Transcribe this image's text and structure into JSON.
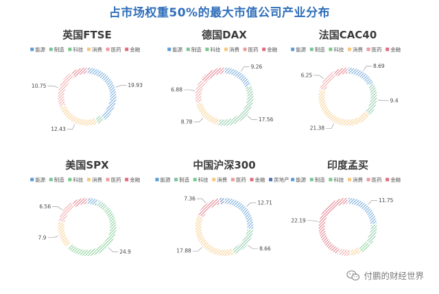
{
  "title": "占市场权重50%的最大市值公司产业分布",
  "colors": {
    "能源": "#5b9bd5",
    "制造": "#7ac29a",
    "科技": "#74c987",
    "消费": "#f6c77d",
    "医药": "#ef9a9a",
    "金融": "#e06a7a",
    "房地产": "#4a6fae"
  },
  "watermark": "付鹏的财经世界",
  "chart_data": [
    {
      "type": "pie",
      "title": "英国FTSE",
      "categories": [
        "能源",
        "制造",
        "科技",
        "消费",
        "医药",
        "金融"
      ],
      "values": [
        19.93,
        2.2,
        0,
        12.43,
        10.75,
        4.69
      ],
      "labels": [
        "19.93",
        "",
        "",
        "12.43",
        "10.75",
        ""
      ]
    },
    {
      "type": "pie",
      "title": "德国DAX",
      "categories": [
        "能源",
        "制造",
        "科技",
        "消费",
        "医药",
        "金融"
      ],
      "values": [
        9.26,
        17.56,
        0,
        8.78,
        6.88,
        7.52
      ],
      "labels": [
        "9.26",
        "17.56",
        "",
        "8.78",
        "6.88",
        ""
      ]
    },
    {
      "type": "pie",
      "title": "法国CAC40",
      "categories": [
        "能源",
        "制造",
        "科技",
        "消费",
        "医药",
        "金融"
      ],
      "values": [
        8.69,
        9.4,
        0,
        21.38,
        6.25,
        4.28
      ],
      "labels": [
        "8.69",
        "9.4",
        "",
        "21.38",
        "6.25",
        ""
      ]
    },
    {
      "type": "pie",
      "title": "美国SPX",
      "categories": [
        "能源",
        "制造",
        "科技",
        "消费",
        "医药",
        "金融"
      ],
      "values": [
        3.2,
        3.0,
        24.9,
        7.9,
        6.56,
        4.44
      ],
      "labels": [
        "",
        "",
        "24.9",
        "7.9",
        "6.56",
        ""
      ]
    },
    {
      "type": "pie",
      "title": "中国沪深300",
      "categories": [
        "能源",
        "制造",
        "科技",
        "消费",
        "医药",
        "金融",
        "房地产"
      ],
      "values": [
        12.71,
        8.66,
        0,
        17.88,
        0,
        7.36,
        1.39
      ],
      "labels": [
        "12.71",
        "8.66",
        "",
        "17.88",
        "",
        "7.36",
        ""
      ]
    },
    {
      "type": "pie",
      "title": "印度孟买",
      "categories": [
        "能源",
        "制造",
        "科技",
        "消费",
        "医药",
        "金融"
      ],
      "values": [
        11.75,
        6.0,
        3.5,
        3.0,
        3.56,
        22.19
      ],
      "labels": [
        "11.75",
        "",
        "",
        "",
        "",
        "22.19"
      ]
    }
  ]
}
